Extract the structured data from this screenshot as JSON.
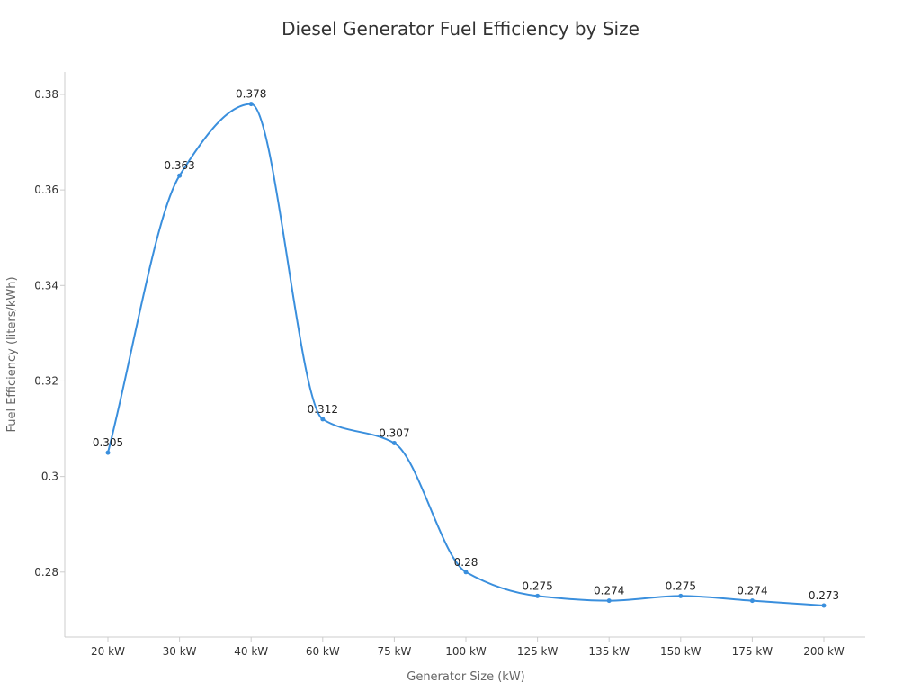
{
  "chart_data": {
    "type": "line",
    "title": "Diesel Generator Fuel Efficiency by Size",
    "xlabel": "Generator Size (kW)",
    "ylabel": "Fuel Efficiency (liters/kWh)",
    "categories": [
      "20 kW",
      "30 kW",
      "40 kW",
      "60 kW",
      "75 kW",
      "100 kW",
      "125 kW",
      "135 kW",
      "150 kW",
      "175 kW",
      "200 kW"
    ],
    "series": [
      {
        "values": [
          0.305,
          0.363,
          0.378,
          0.312,
          0.307,
          0.28,
          0.275,
          0.274,
          0.275,
          0.274,
          0.273
        ],
        "color": "#3a8fdd",
        "smooth": true
      }
    ],
    "data_labels": [
      "0.305",
      "0.363",
      "0.378",
      "0.312",
      "0.307",
      "0.28",
      "0.275",
      "0.274",
      "0.275",
      "0.274",
      "0.273"
    ],
    "y_ticks": [
      "0.28",
      "0.3",
      "0.32",
      "0.34",
      "0.36",
      "0.38"
    ],
    "ylim": [
      0.2664,
      0.3847
    ],
    "grid": false,
    "legend": "none"
  }
}
